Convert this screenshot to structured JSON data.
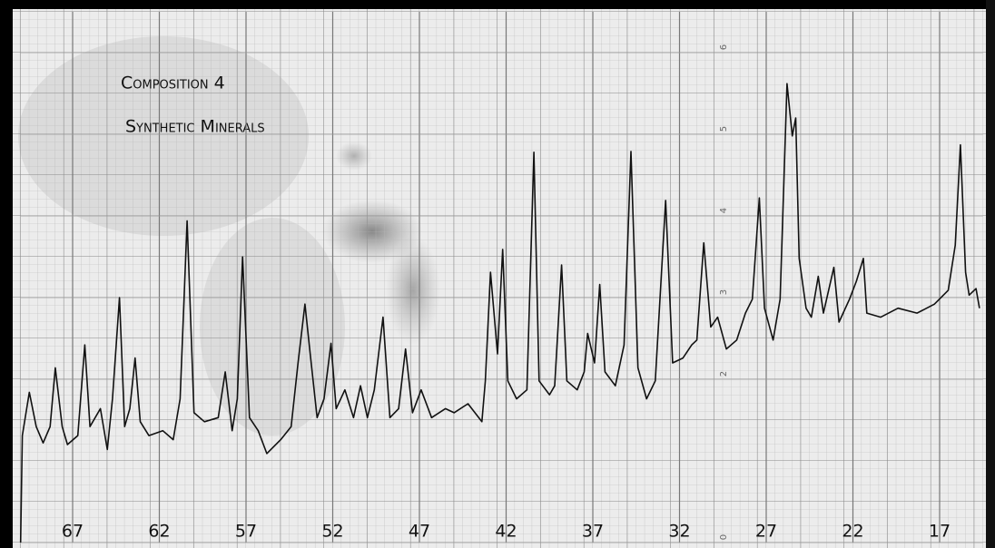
{
  "chart_data": {
    "type": "line",
    "title": "Composition 4",
    "subtitle": "Synthetic Minerals",
    "x": [
      70.0,
      69.9,
      69.5,
      69.1,
      68.7,
      68.3,
      68.0,
      67.6,
      67.3,
      66.7,
      66.3,
      66.0,
      65.4,
      65.0,
      64.7,
      64.3,
      64.0,
      63.7,
      63.4,
      63.1,
      62.6,
      61.8,
      61.2,
      60.8,
      60.4,
      60.0,
      59.4,
      58.6,
      58.2,
      57.8,
      57.5,
      57.2,
      56.8,
      56.3,
      55.8,
      55.0,
      54.4,
      54.0,
      53.6,
      53.3,
      52.9,
      52.5,
      52.1,
      51.8,
      51.3,
      50.8,
      50.4,
      50.0,
      49.6,
      49.1,
      48.7,
      48.2,
      47.8,
      47.4,
      46.9,
      46.3,
      45.5,
      45.0,
      44.2,
      43.4,
      43.2,
      42.9,
      42.5,
      42.2,
      41.9,
      41.4,
      40.8,
      40.4,
      40.1,
      39.5,
      39.2,
      38.8,
      38.5,
      37.9,
      37.5,
      37.3,
      36.9,
      36.6,
      36.3,
      35.7,
      35.2,
      34.8,
      34.4,
      33.9,
      33.4,
      32.8,
      32.4,
      31.8,
      31.3,
      31.0,
      30.6,
      30.2,
      29.8,
      29.3,
      28.7,
      28.2,
      27.8,
      27.4,
      27.1,
      26.6,
      26.2,
      25.8,
      25.5,
      25.3,
      25.1,
      24.7,
      24.4,
      24.0,
      23.7,
      23.1,
      22.8,
      22.2,
      21.8,
      21.4,
      21.2,
      20.4,
      19.4,
      18.3,
      17.3,
      16.5,
      16.1,
      15.8,
      15.5,
      15.3,
      14.9,
      14.7
    ],
    "values": [
      0,
      1.31,
      1.84,
      1.42,
      1.22,
      1.42,
      2.14,
      1.42,
      1.2,
      1.31,
      2.42,
      1.42,
      1.64,
      1.14,
      1.76,
      3.0,
      1.42,
      1.64,
      2.26,
      1.48,
      1.31,
      1.37,
      1.26,
      1.76,
      3.94,
      1.59,
      1.48,
      1.53,
      2.09,
      1.37,
      1.76,
      3.5,
      1.53,
      1.37,
      1.09,
      1.26,
      1.42,
      2.2,
      2.92,
      2.31,
      1.53,
      1.76,
      2.44,
      1.64,
      1.87,
      1.53,
      1.92,
      1.53,
      1.87,
      2.76,
      1.53,
      1.64,
      2.37,
      1.59,
      1.87,
      1.53,
      1.64,
      1.59,
      1.7,
      1.48,
      1.98,
      3.31,
      2.31,
      3.59,
      1.98,
      1.76,
      1.87,
      4.78,
      1.98,
      1.81,
      1.92,
      3.4,
      1.98,
      1.87,
      2.09,
      2.56,
      2.2,
      3.16,
      2.09,
      1.92,
      2.42,
      4.79,
      2.14,
      1.76,
      1.98,
      4.19,
      2.2,
      2.26,
      2.42,
      2.48,
      3.67,
      2.64,
      2.76,
      2.37,
      2.48,
      2.81,
      2.98,
      4.22,
      2.87,
      2.48,
      2.98,
      5.62,
      4.98,
      5.2,
      3.48,
      2.87,
      2.76,
      3.26,
      2.81,
      3.37,
      2.7,
      2.98,
      3.2,
      3.48,
      2.81,
      2.76,
      2.87,
      2.81,
      2.92,
      3.09,
      3.64,
      4.87,
      3.31,
      3.03,
      3.11,
      2.87
    ],
    "color": "#111111",
    "xlim": [
      70,
      14.5
    ],
    "xticks": [
      67,
      62,
      57,
      52,
      47,
      42,
      37,
      32,
      27,
      22,
      17
    ],
    "ylim": [
      0,
      6.5
    ],
    "yticks": [
      0,
      2,
      3,
      4,
      5,
      6
    ],
    "grid": true
  }
}
